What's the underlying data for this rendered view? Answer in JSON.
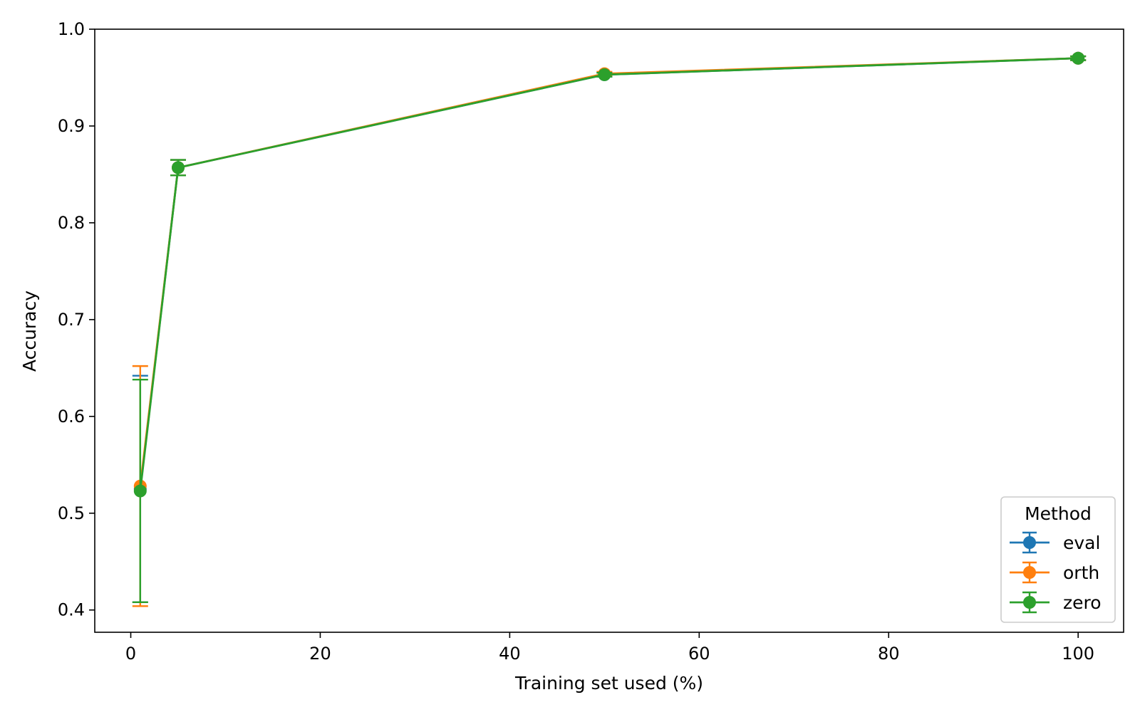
{
  "chart_data": {
    "type": "line",
    "title": "",
    "xlabel": "Training set used (%)",
    "ylabel": "Accuracy",
    "xlim": [
      -3.8,
      104.8
    ],
    "ylim": [
      0.377,
      1.0
    ],
    "xticks": [
      0,
      20,
      40,
      60,
      80,
      100
    ],
    "yticks": [
      0.4,
      0.5,
      0.6,
      0.7,
      0.8,
      0.9,
      1.0
    ],
    "xtick_labels": [
      "0",
      "20",
      "40",
      "60",
      "80",
      "100"
    ],
    "ytick_labels": [
      "0.4",
      "0.5",
      "0.6",
      "0.7",
      "0.8",
      "0.9",
      "1.0"
    ],
    "grid": false,
    "legend": {
      "title": "Method",
      "placement": "lower-right"
    },
    "x": [
      1,
      5,
      50,
      100
    ],
    "series": [
      {
        "name": "eval",
        "color": "#1f77b4",
        "values": [
          0.525,
          0.857,
          0.953,
          0.97
        ],
        "errors": [
          0.117,
          0.008,
          0.002,
          0.002
        ]
      },
      {
        "name": "orth",
        "color": "#ff7f0e",
        "values": [
          0.528,
          0.857,
          0.954,
          0.97
        ],
        "errors": [
          0.124,
          0.008,
          0.002,
          0.002
        ]
      },
      {
        "name": "zero",
        "color": "#2ca02c",
        "values": [
          0.523,
          0.857,
          0.953,
          0.97
        ],
        "errors": [
          0.115,
          0.008,
          0.002,
          0.002
        ]
      }
    ]
  }
}
